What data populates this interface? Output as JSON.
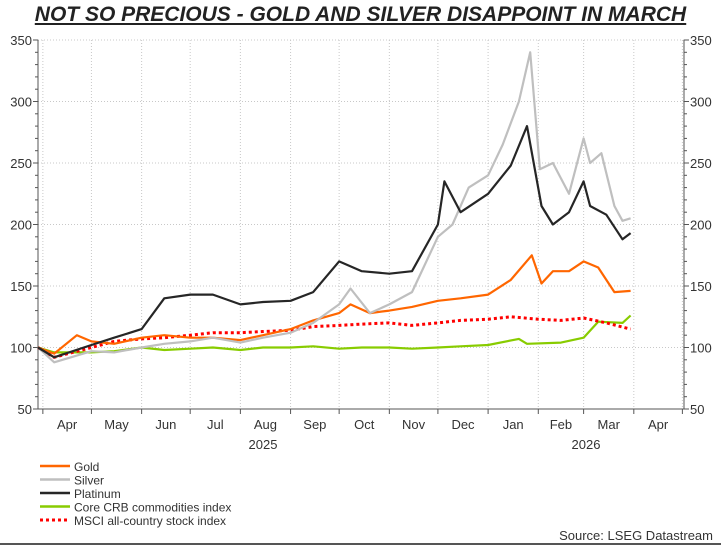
{
  "title": "NOT SO PRECIOUS - GOLD AND SILVER DISAPPOINT IN MARCH",
  "source": "Source: LSEG Datastream",
  "chart_data": {
    "type": "line",
    "title": "NOT SO PRECIOUS - GOLD AND SILVER DISAPPOINT IN MARCH",
    "xlabel": "",
    "ylabel": "",
    "ylim": [
      50,
      350
    ],
    "yticks": [
      50,
      100,
      150,
      200,
      250,
      300,
      350
    ],
    "y_axis_both_sides": true,
    "xlim": [
      "2025-03-29",
      "2026-05-02"
    ],
    "month_labels": [
      "Apr",
      "May",
      "Jun",
      "Jul",
      "Aug",
      "Sep",
      "Oct",
      "Nov",
      "Dec",
      "Jan",
      "Feb",
      "Mar",
      "Apr"
    ],
    "year_labels": [
      "2025",
      "2026"
    ],
    "grid": true,
    "legend_position": "bottom-left",
    "series": [
      {
        "name": "Gold",
        "color": "#ff6600",
        "style": "solid",
        "points": [
          [
            "2025-03-29",
            100
          ],
          [
            "2025-04-08",
            95
          ],
          [
            "2025-04-22",
            110
          ],
          [
            "2025-05-01",
            105
          ],
          [
            "2025-05-15",
            103
          ],
          [
            "2025-06-01",
            108
          ],
          [
            "2025-06-15",
            110
          ],
          [
            "2025-07-01",
            108
          ],
          [
            "2025-07-15",
            108
          ],
          [
            "2025-08-01",
            106
          ],
          [
            "2025-08-15",
            110
          ],
          [
            "2025-09-01",
            115
          ],
          [
            "2025-09-15",
            122
          ],
          [
            "2025-10-01",
            128
          ],
          [
            "2025-10-08",
            135
          ],
          [
            "2025-10-20",
            128
          ],
          [
            "2025-11-01",
            130
          ],
          [
            "2025-11-15",
            133
          ],
          [
            "2025-12-01",
            138
          ],
          [
            "2025-12-15",
            140
          ],
          [
            "2026-01-01",
            143
          ],
          [
            "2026-01-15",
            155
          ],
          [
            "2026-01-28",
            175
          ],
          [
            "2026-02-03",
            152
          ],
          [
            "2026-02-10",
            162
          ],
          [
            "2026-02-20",
            162
          ],
          [
            "2026-03-01",
            170
          ],
          [
            "2026-03-10",
            165
          ],
          [
            "2026-03-20",
            145
          ],
          [
            "2026-03-30",
            146
          ]
        ]
      },
      {
        "name": "Silver",
        "color": "#bfbfbf",
        "style": "solid",
        "points": [
          [
            "2025-03-29",
            100
          ],
          [
            "2025-04-08",
            88
          ],
          [
            "2025-05-01",
            97
          ],
          [
            "2025-05-15",
            96
          ],
          [
            "2025-06-01",
            100
          ],
          [
            "2025-06-15",
            103
          ],
          [
            "2025-07-01",
            105
          ],
          [
            "2025-07-15",
            108
          ],
          [
            "2025-08-01",
            104
          ],
          [
            "2025-08-15",
            108
          ],
          [
            "2025-09-01",
            112
          ],
          [
            "2025-09-15",
            120
          ],
          [
            "2025-10-01",
            135
          ],
          [
            "2025-10-08",
            148
          ],
          [
            "2025-10-20",
            128
          ],
          [
            "2025-11-01",
            135
          ],
          [
            "2025-11-15",
            145
          ],
          [
            "2025-12-01",
            190
          ],
          [
            "2025-12-10",
            200
          ],
          [
            "2025-12-20",
            230
          ],
          [
            "2026-01-01",
            240
          ],
          [
            "2026-01-10",
            265
          ],
          [
            "2026-01-20",
            300
          ],
          [
            "2026-01-27",
            340
          ],
          [
            "2026-02-02",
            245
          ],
          [
            "2026-02-10",
            250
          ],
          [
            "2026-02-20",
            225
          ],
          [
            "2026-03-01",
            270
          ],
          [
            "2026-03-05",
            250
          ],
          [
            "2026-03-12",
            258
          ],
          [
            "2026-03-20",
            215
          ],
          [
            "2026-03-25",
            203
          ],
          [
            "2026-03-30",
            205
          ]
        ]
      },
      {
        "name": "Platinum",
        "color": "#262626",
        "style": "solid",
        "points": [
          [
            "2025-03-29",
            100
          ],
          [
            "2025-04-08",
            92
          ],
          [
            "2025-05-01",
            102
          ],
          [
            "2025-05-15",
            108
          ],
          [
            "2025-06-01",
            115
          ],
          [
            "2025-06-15",
            140
          ],
          [
            "2025-07-01",
            143
          ],
          [
            "2025-07-15",
            143
          ],
          [
            "2025-08-01",
            135
          ],
          [
            "2025-08-15",
            137
          ],
          [
            "2025-09-01",
            138
          ],
          [
            "2025-09-15",
            145
          ],
          [
            "2025-10-01",
            170
          ],
          [
            "2025-10-15",
            162
          ],
          [
            "2025-11-01",
            160
          ],
          [
            "2025-11-15",
            162
          ],
          [
            "2025-12-01",
            200
          ],
          [
            "2025-12-05",
            235
          ],
          [
            "2025-12-15",
            210
          ],
          [
            "2026-01-01",
            225
          ],
          [
            "2026-01-15",
            248
          ],
          [
            "2026-01-25",
            280
          ],
          [
            "2026-02-03",
            215
          ],
          [
            "2026-02-10",
            200
          ],
          [
            "2026-02-20",
            210
          ],
          [
            "2026-03-01",
            235
          ],
          [
            "2026-03-05",
            215
          ],
          [
            "2026-03-15",
            208
          ],
          [
            "2026-03-25",
            188
          ],
          [
            "2026-03-30",
            193
          ]
        ]
      },
      {
        "name": "Core CRB commodities index",
        "color": "#88cc00",
        "style": "solid",
        "points": [
          [
            "2025-03-29",
            100
          ],
          [
            "2025-04-08",
            96
          ],
          [
            "2025-05-01",
            96
          ],
          [
            "2025-05-15",
            97
          ],
          [
            "2025-06-01",
            100
          ],
          [
            "2025-06-15",
            98
          ],
          [
            "2025-07-01",
            99
          ],
          [
            "2025-07-15",
            100
          ],
          [
            "2025-08-01",
            98
          ],
          [
            "2025-08-15",
            100
          ],
          [
            "2025-09-01",
            100
          ],
          [
            "2025-09-15",
            101
          ],
          [
            "2025-10-01",
            99
          ],
          [
            "2025-10-15",
            100
          ],
          [
            "2025-11-01",
            100
          ],
          [
            "2025-11-15",
            99
          ],
          [
            "2025-12-01",
            100
          ],
          [
            "2025-12-15",
            101
          ],
          [
            "2026-01-01",
            102
          ],
          [
            "2026-01-20",
            107
          ],
          [
            "2026-01-25",
            103
          ],
          [
            "2026-02-15",
            104
          ],
          [
            "2026-03-01",
            108
          ],
          [
            "2026-03-10",
            121
          ],
          [
            "2026-03-25",
            120
          ],
          [
            "2026-03-30",
            126
          ]
        ]
      },
      {
        "name": "MSCI all-country stock index",
        "color": "#ff0000",
        "style": "dotted",
        "points": [
          [
            "2025-03-29",
            100
          ],
          [
            "2025-04-08",
            92
          ],
          [
            "2025-05-01",
            100
          ],
          [
            "2025-05-15",
            105
          ],
          [
            "2025-06-01",
            107
          ],
          [
            "2025-06-15",
            108
          ],
          [
            "2025-07-01",
            110
          ],
          [
            "2025-07-15",
            112
          ],
          [
            "2025-08-01",
            112
          ],
          [
            "2025-08-15",
            113
          ],
          [
            "2025-09-01",
            114
          ],
          [
            "2025-09-15",
            117
          ],
          [
            "2025-10-01",
            118
          ],
          [
            "2025-10-15",
            119
          ],
          [
            "2025-11-01",
            120
          ],
          [
            "2025-11-15",
            118
          ],
          [
            "2025-12-01",
            120
          ],
          [
            "2025-12-15",
            122
          ],
          [
            "2026-01-01",
            123
          ],
          [
            "2026-01-15",
            125
          ],
          [
            "2026-02-01",
            123
          ],
          [
            "2026-02-15",
            122
          ],
          [
            "2026-03-01",
            124
          ],
          [
            "2026-03-15",
            120
          ],
          [
            "2026-03-30",
            115
          ]
        ]
      }
    ]
  }
}
